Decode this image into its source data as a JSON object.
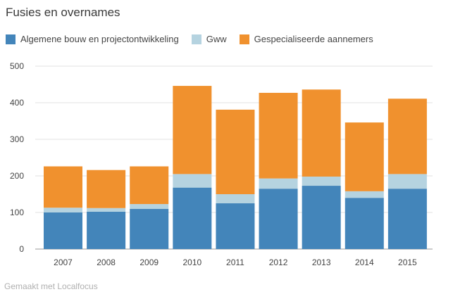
{
  "chart_data": {
    "type": "bar",
    "stacked": true,
    "title": "Fusies en overnames",
    "categories": [
      "2007",
      "2008",
      "2009",
      "2010",
      "2011",
      "2012",
      "2013",
      "2014",
      "2015"
    ],
    "series": [
      {
        "name": "Algemene bouw en projectontwikkeling",
        "color": "#4385ba",
        "values": [
          100,
          102,
          110,
          168,
          125,
          165,
          173,
          140,
          165
        ]
      },
      {
        "name": "Gww",
        "color": "#b5d3e0",
        "values": [
          13,
          10,
          13,
          37,
          25,
          28,
          25,
          18,
          40
        ]
      },
      {
        "name": "Gespecialiseerde aannemers",
        "color": "#f0912e",
        "values": [
          113,
          104,
          103,
          241,
          231,
          234,
          238,
          188,
          206
        ]
      }
    ],
    "yticks": [
      0,
      100,
      200,
      300,
      400,
      500
    ],
    "ylim": [
      0,
      500
    ],
    "grid": true,
    "legend": "top-left"
  },
  "footer": "Gemaakt met Localfocus"
}
